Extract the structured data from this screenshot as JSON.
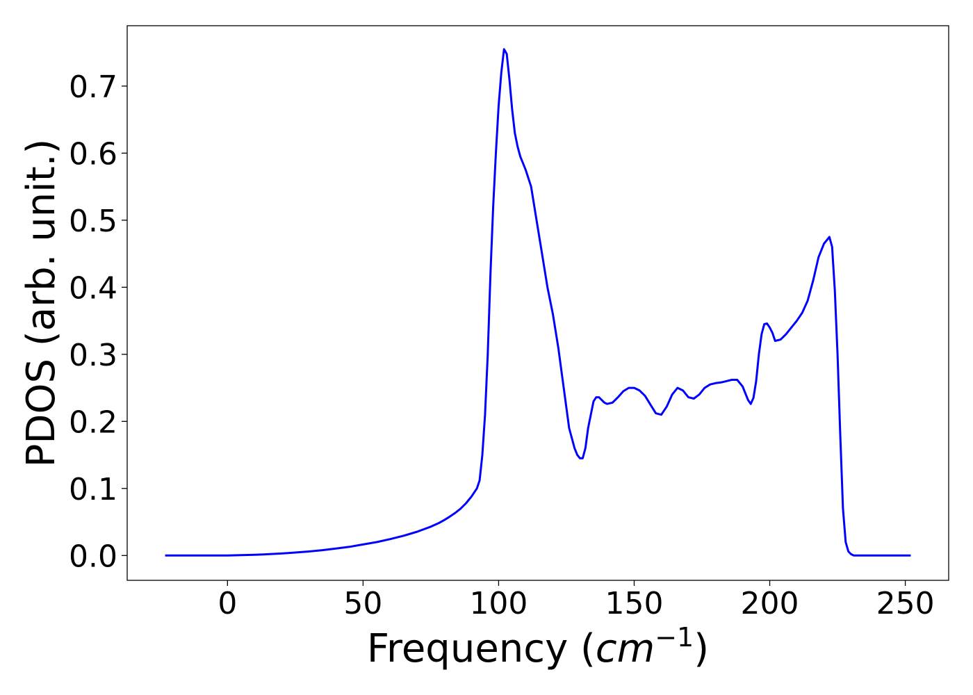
{
  "chart_data": {
    "type": "line",
    "title": "",
    "xlabel": "Frequency (",
    "xlabel_math": "cm",
    "xlabel_sup": "−1",
    "xlabel_close": ")",
    "ylabel": "PDOS (arb. unit.)",
    "xlim": [
      -37,
      266
    ],
    "ylim": [
      -0.037,
      0.79
    ],
    "grid": false,
    "legend": "none",
    "x_ticks": [
      0,
      50,
      100,
      150,
      200,
      250
    ],
    "x_tick_labels": [
      "0",
      "50",
      "100",
      "150",
      "200",
      "250"
    ],
    "y_ticks": [
      0.0,
      0.1,
      0.2,
      0.3,
      0.4,
      0.5,
      0.6,
      0.7
    ],
    "y_tick_labels": [
      "0.0",
      "0.1",
      "0.2",
      "0.3",
      "0.4",
      "0.5",
      "0.6",
      "0.7"
    ],
    "series": [
      {
        "color": "#0000ff",
        "x": [
          -23,
          -10,
          0,
          5,
          10,
          15,
          20,
          25,
          30,
          35,
          40,
          45,
          50,
          55,
          60,
          65,
          70,
          75,
          78,
          80,
          82,
          84,
          86,
          88,
          90,
          91,
          92,
          93,
          94,
          95,
          96,
          97,
          98,
          99,
          100,
          101,
          102,
          103,
          104,
          105,
          106,
          107,
          108,
          109,
          110,
          112,
          114,
          116,
          118,
          120,
          122,
          124,
          126,
          128,
          129,
          130,
          131,
          132,
          133,
          134,
          135,
          136,
          137,
          138,
          139,
          140,
          142,
          144,
          146,
          148,
          150,
          152,
          154,
          156,
          158,
          160,
          162,
          164,
          166,
          168,
          170,
          172,
          174,
          176,
          178,
          180,
          182,
          184,
          186,
          188,
          190,
          192,
          193,
          194,
          195,
          196,
          197,
          198,
          199,
          200,
          201,
          202,
          204,
          206,
          208,
          210,
          212,
          214,
          216,
          218,
          220,
          222,
          223,
          224,
          225,
          226,
          227,
          228,
          229,
          230,
          231,
          232,
          233,
          234,
          235,
          236,
          237,
          240,
          245,
          252
        ],
        "y": [
          0.0,
          0.0,
          0.0,
          0.0005,
          0.001,
          0.002,
          0.003,
          0.0045,
          0.006,
          0.008,
          0.0105,
          0.013,
          0.0165,
          0.02,
          0.0245,
          0.0295,
          0.0355,
          0.043,
          0.0485,
          0.053,
          0.058,
          0.0635,
          0.07,
          0.078,
          0.088,
          0.094,
          0.1,
          0.112,
          0.15,
          0.21,
          0.3,
          0.42,
          0.52,
          0.6,
          0.67,
          0.72,
          0.755,
          0.748,
          0.71,
          0.665,
          0.63,
          0.61,
          0.595,
          0.585,
          0.575,
          0.55,
          0.5,
          0.45,
          0.4,
          0.36,
          0.31,
          0.25,
          0.19,
          0.16,
          0.15,
          0.145,
          0.145,
          0.16,
          0.19,
          0.21,
          0.23,
          0.236,
          0.236,
          0.232,
          0.228,
          0.226,
          0.228,
          0.236,
          0.245,
          0.25,
          0.25,
          0.246,
          0.238,
          0.225,
          0.212,
          0.21,
          0.222,
          0.24,
          0.25,
          0.246,
          0.236,
          0.234,
          0.24,
          0.25,
          0.255,
          0.257,
          0.258,
          0.26,
          0.262,
          0.262,
          0.252,
          0.232,
          0.226,
          0.235,
          0.26,
          0.3,
          0.33,
          0.345,
          0.346,
          0.34,
          0.332,
          0.32,
          0.322,
          0.33,
          0.34,
          0.35,
          0.362,
          0.38,
          0.41,
          0.445,
          0.465,
          0.475,
          0.46,
          0.395,
          0.3,
          0.18,
          0.07,
          0.02,
          0.006,
          0.002,
          0.0,
          0.0,
          0.0,
          0.0,
          0.0,
          0.0,
          0.0,
          0.0,
          0.0,
          0.0
        ]
      }
    ]
  }
}
